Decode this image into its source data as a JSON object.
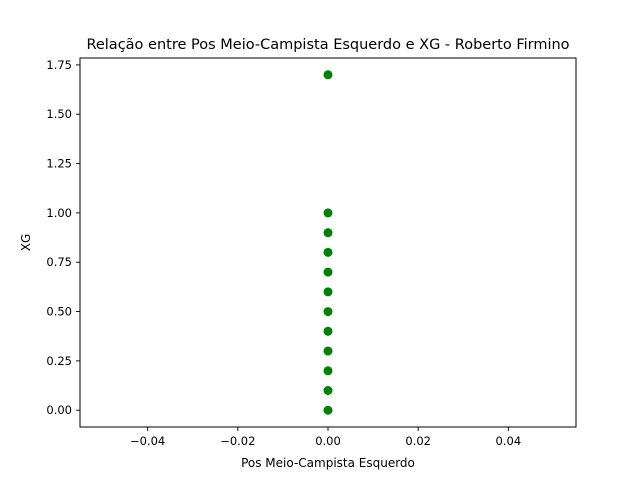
{
  "chart_data": {
    "type": "scatter",
    "title": "Relação entre Pos Meio-Campista Esquerdo e XG - Roberto Firmino",
    "xlabel": "Pos Meio-Campista Esquerdo",
    "ylabel": "XG",
    "xlim": [
      -0.055,
      0.055
    ],
    "ylim": [
      -0.085,
      1.785
    ],
    "x_ticks": [
      -0.04,
      -0.02,
      0.0,
      0.02,
      0.04
    ],
    "x_tick_labels": [
      "−0.04",
      "−0.02",
      "0.00",
      "0.02",
      "0.04"
    ],
    "y_ticks": [
      0.0,
      0.25,
      0.5,
      0.75,
      1.0,
      1.25,
      1.5,
      1.75
    ],
    "y_tick_labels": [
      "0.00",
      "0.25",
      "0.50",
      "0.75",
      "1.00",
      "1.25",
      "1.50",
      "1.75"
    ],
    "grid": false,
    "marker_color": "#008000",
    "points": [
      {
        "x": 0,
        "y": 1.7
      },
      {
        "x": 0,
        "y": 1.0
      },
      {
        "x": 0,
        "y": 0.9
      },
      {
        "x": 0,
        "y": 0.8
      },
      {
        "x": 0,
        "y": 0.7
      },
      {
        "x": 0,
        "y": 0.6
      },
      {
        "x": 0,
        "y": 0.5
      },
      {
        "x": 0,
        "y": 0.4
      },
      {
        "x": 0,
        "y": 0.3
      },
      {
        "x": 0,
        "y": 0.2
      },
      {
        "x": 0,
        "y": 0.1
      },
      {
        "x": 0,
        "y": 0.0
      }
    ]
  }
}
